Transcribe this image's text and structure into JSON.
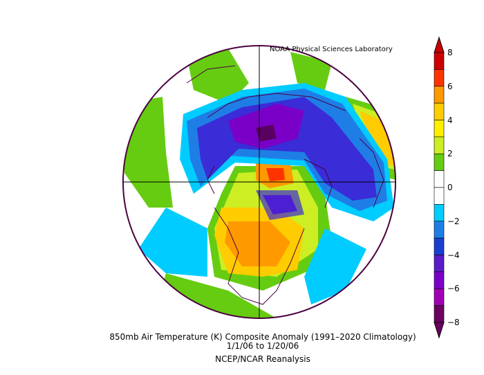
{
  "credit": "NOAA Physical Sciences Laboratory",
  "title": "850mb Air Temperature (K) Composite Anomaly (1991–2020 Climatology)",
  "date_range": "1/1/06   to 1/20/06",
  "source": "NCEP/NCAR Reanalysis",
  "colorbar": {
    "ticks": [
      "8",
      "6",
      "4",
      "2",
      "0",
      "−2",
      "−4",
      "−6",
      "−8"
    ],
    "colors": [
      "#cc0000",
      "#ff3300",
      "#ff9900",
      "#ffcc00",
      "#ffee00",
      "#ccee22",
      "#66cc11",
      "#ffffff",
      "#ffffff",
      "#00ccff",
      "#1e7ee6",
      "#1a3fd0",
      "#5a1cc8",
      "#7a00c8",
      "#a000b4",
      "#6a0060"
    ]
  },
  "map_colors": {
    "outline": "#4a0040",
    "neg_weak": "#00ccff",
    "neg_mid": "#1e7ee6",
    "neg_strong": "#3a2cd6",
    "neg_deep": "#7a00c8",
    "neg_extreme": "#5a0060",
    "pos_weak": "#66cc11",
    "pos_mid": "#ccee22",
    "pos_strong": "#ffcc00",
    "pos_hot": "#ff9900",
    "pos_extreme": "#ff3300"
  }
}
